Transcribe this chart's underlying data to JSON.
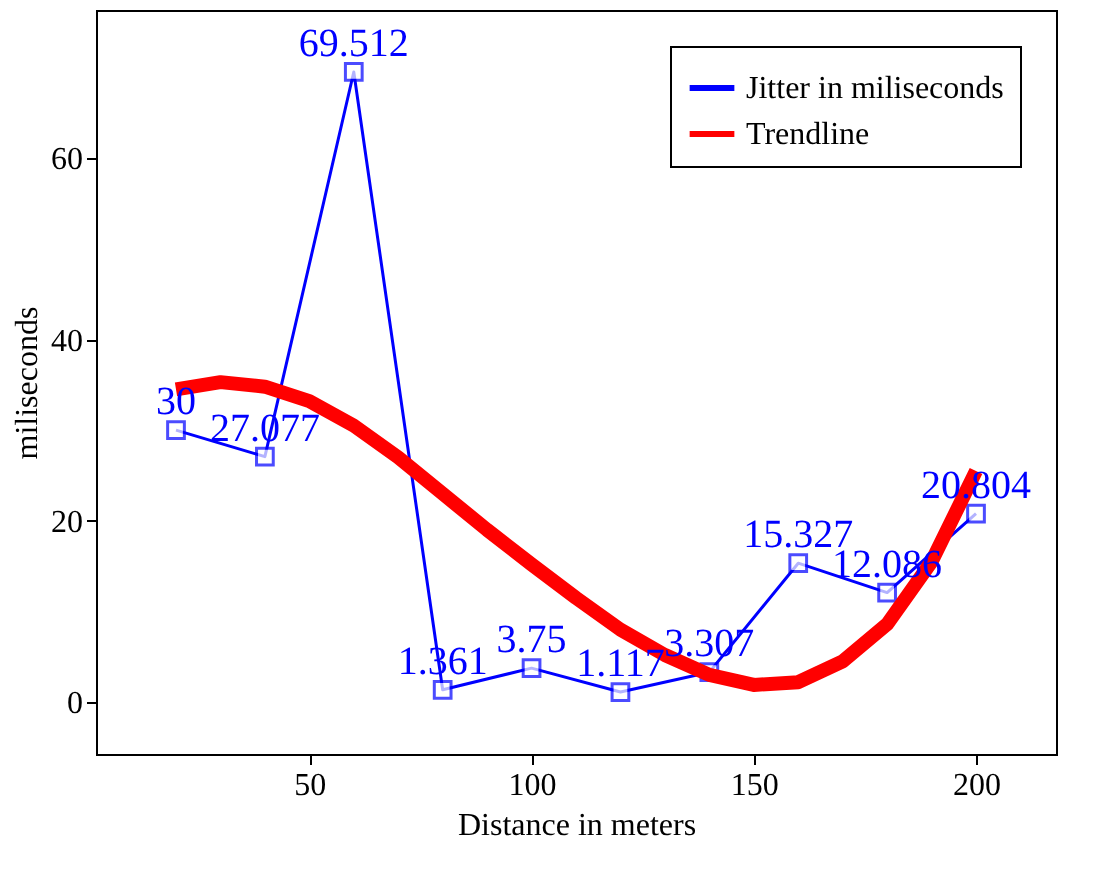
{
  "chart_data": {
    "type": "line",
    "xlabel": "Distance in meters",
    "ylabel": "miliseconds",
    "xlim": [
      2,
      218
    ],
    "ylim": [
      -5.72,
      76.35
    ],
    "xticks": [
      50,
      100,
      150,
      200
    ],
    "yticks": [
      0,
      20,
      40,
      60
    ],
    "grid": false,
    "legend": "top right",
    "series": [
      {
        "name": "Jitter in miliseconds",
        "color": "#0000ff",
        "marker": "square",
        "line_style": "solid",
        "x": [
          20,
          40,
          60,
          80,
          100,
          120,
          140,
          160,
          180,
          200
        ],
        "values": [
          30,
          27.077,
          69.512,
          1.361,
          3.75,
          1.117,
          3.307,
          15.327,
          12.086,
          20.804
        ],
        "value_labels": [
          "30",
          "27.077",
          "69.512",
          "1.361",
          "3.75",
          "1.117",
          "3.307",
          "15.327",
          "12.086",
          "20.804"
        ]
      },
      {
        "name": "Trendline",
        "color": "#ff0000",
        "marker": "none",
        "line_style": "solid",
        "x": [
          20,
          30,
          40,
          50,
          60,
          70,
          80,
          90,
          100,
          110,
          120,
          130,
          140,
          150,
          160,
          170,
          180,
          190,
          200
        ],
        "values": [
          34.5,
          35.3,
          34.8,
          33.2,
          30.5,
          27,
          23,
          19,
          15.2,
          11.5,
          8,
          5.2,
          3,
          1.9,
          2.2,
          4.5,
          8.6,
          15.5,
          25.5
        ]
      }
    ]
  }
}
